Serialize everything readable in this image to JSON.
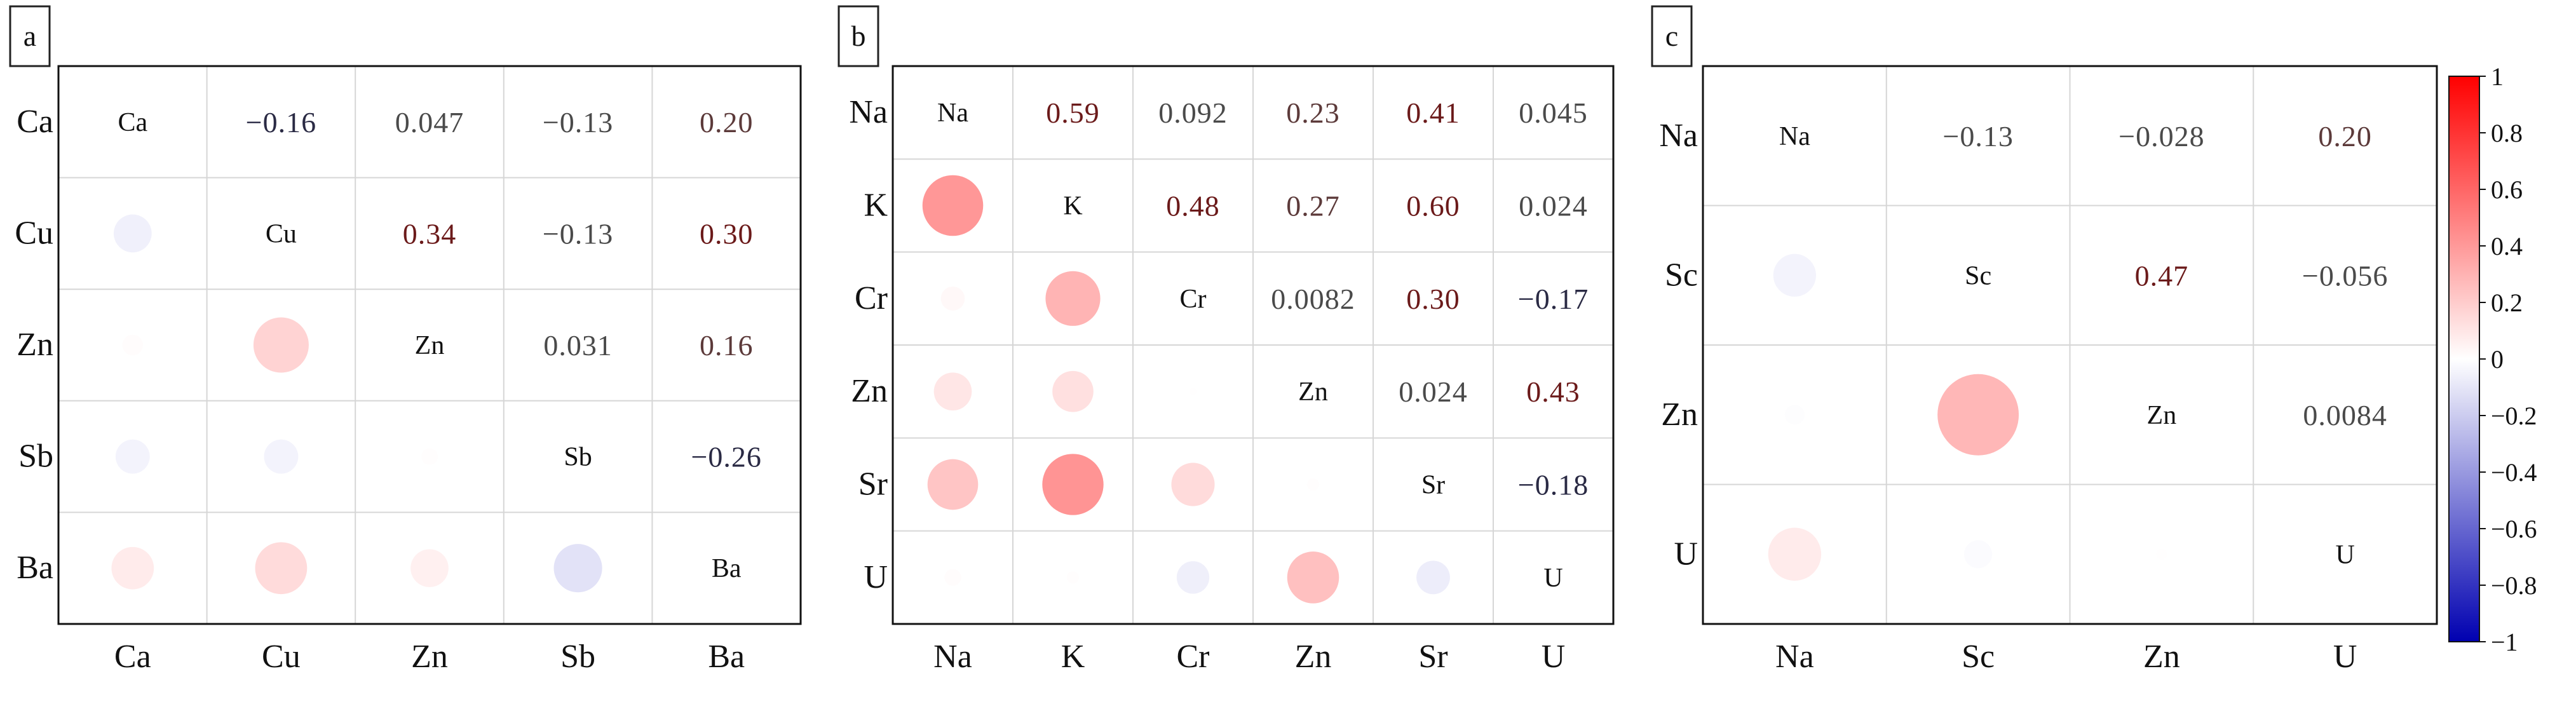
{
  "colorbar": {
    "ticks": [
      "1",
      "0.8",
      "0.6",
      "0.4",
      "0.2",
      "0",
      "−0.2",
      "−0.4",
      "−0.6",
      "−0.8",
      "−1"
    ],
    "colors": {
      "max": "#ff0000",
      "mid": "#ffffff",
      "min": "#0000b0"
    }
  },
  "chart_data": [
    {
      "type": "heatmap",
      "panel_label": "a",
      "variables": [
        "Ca",
        "Cu",
        "Zn",
        "Sb",
        "Ba"
      ],
      "upper_labels": [
        [
          "",
          "−0.16",
          "0.047",
          "−0.13",
          "0.20"
        ],
        [
          "",
          "",
          "0.34",
          "−0.13",
          "0.30"
        ],
        [
          "",
          "",
          "",
          "0.031",
          "0.16"
        ],
        [
          "",
          "",
          "",
          "",
          "−0.26"
        ],
        [
          "",
          "",
          "",
          "",
          ""
        ]
      ],
      "matrix": [
        [
          1,
          -0.16,
          0.047,
          -0.13,
          0.2
        ],
        [
          -0.16,
          1,
          0.34,
          -0.13,
          0.3
        ],
        [
          0.047,
          0.34,
          1,
          0.031,
          0.16
        ],
        [
          -0.13,
          -0.13,
          0.031,
          1,
          -0.26
        ],
        [
          0.2,
          0.3,
          0.16,
          -0.26,
          1
        ]
      ]
    },
    {
      "type": "heatmap",
      "panel_label": "b",
      "variables": [
        "Na",
        "K",
        "Cr",
        "Zn",
        "Sr",
        "U"
      ],
      "upper_labels": [
        [
          "",
          "0.59",
          "0.092",
          "0.23",
          "0.41",
          "0.045"
        ],
        [
          "",
          "",
          "0.48",
          "0.27",
          "0.60",
          "0.024"
        ],
        [
          "",
          "",
          "",
          "0.0082",
          "0.30",
          "−0.17"
        ],
        [
          "",
          "",
          "",
          "",
          "0.024",
          "0.43"
        ],
        [
          "",
          "",
          "",
          "",
          "",
          "−0.18"
        ],
        [
          "",
          "",
          "",
          "",
          "",
          ""
        ]
      ],
      "matrix": [
        [
          1,
          0.59,
          0.092,
          0.23,
          0.41,
          0.045
        ],
        [
          0.59,
          1,
          0.48,
          0.27,
          0.6,
          0.024
        ],
        [
          0.092,
          0.48,
          1,
          0.0082,
          0.3,
          -0.17
        ],
        [
          0.23,
          0.27,
          0.0082,
          1,
          0.024,
          0.43
        ],
        [
          0.41,
          0.6,
          0.3,
          0.024,
          1,
          -0.18
        ],
        [
          0.045,
          0.024,
          -0.17,
          0.43,
          -0.18,
          1
        ]
      ]
    },
    {
      "type": "heatmap",
      "panel_label": "c",
      "variables": [
        "Na",
        "Sc",
        "Zn",
        "U"
      ],
      "upper_labels": [
        [
          "",
          "−0.13",
          "−0.028",
          "0.20"
        ],
        [
          "",
          "",
          "0.47",
          "−0.056"
        ],
        [
          "",
          "",
          "",
          "0.0084"
        ],
        [
          "",
          "",
          "",
          ""
        ]
      ],
      "matrix": [
        [
          1,
          -0.13,
          -0.028,
          0.2
        ],
        [
          -0.13,
          1,
          0.47,
          -0.056
        ],
        [
          -0.028,
          0.47,
          1,
          0.0084
        ],
        [
          0.2,
          -0.056,
          0.0084,
          1
        ]
      ]
    }
  ]
}
